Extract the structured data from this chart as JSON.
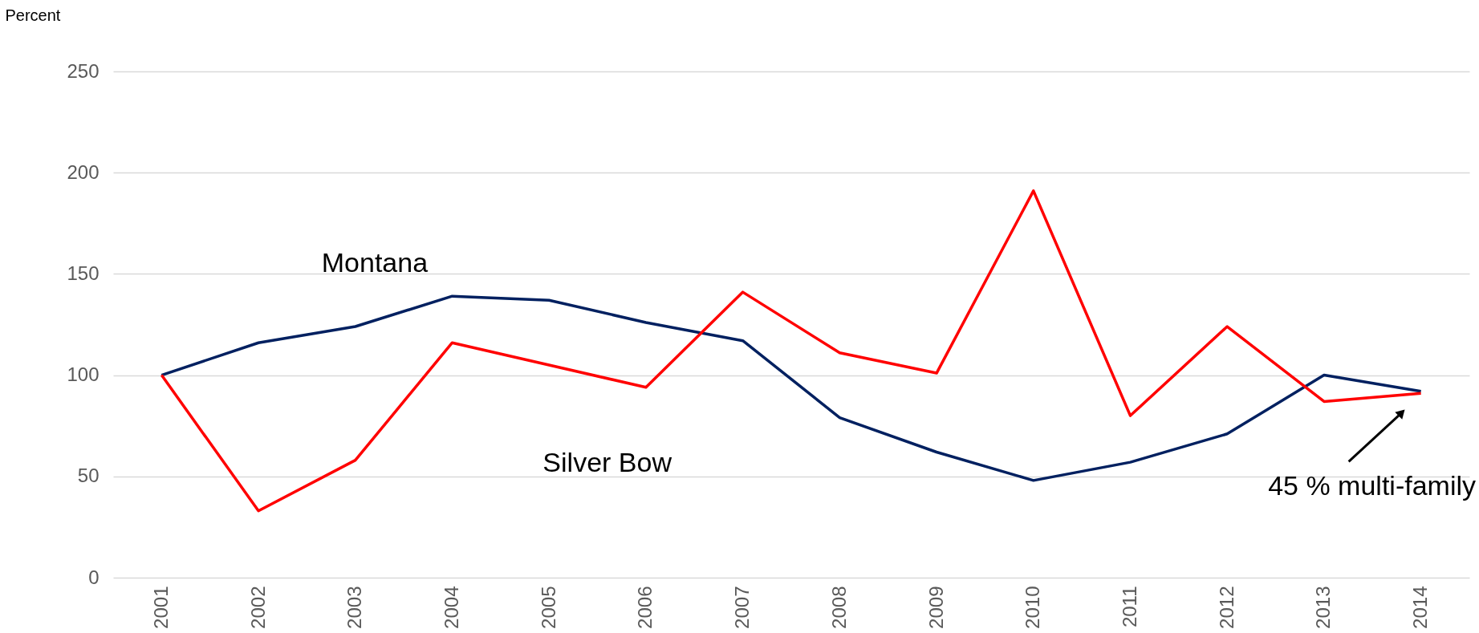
{
  "chart_data": {
    "type": "line",
    "ylabel": "Percent",
    "categories": [
      "2001",
      "2002",
      "2003",
      "2004",
      "2005",
      "2006",
      "2007",
      "2008",
      "2009",
      "2010",
      "2011",
      "2012",
      "2013",
      "2014"
    ],
    "series": [
      {
        "name": "Montana",
        "color": "#002060",
        "values": [
          100,
          116,
          124,
          139,
          137,
          126,
          117,
          79,
          62,
          48,
          57,
          71,
          100,
          92
        ]
      },
      {
        "name": "Silver Bow",
        "color": "#ff0000",
        "values": [
          100,
          33,
          58,
          116,
          105,
          94,
          141,
          111,
          101,
          191,
          80,
          124,
          87,
          91
        ]
      }
    ],
    "ylim": [
      0,
      250
    ],
    "yticks": [
      0,
      50,
      100,
      150,
      200,
      250
    ],
    "grid": "y",
    "legend": false,
    "annotations": [
      {
        "text": "45 % multi-family",
        "x": "2014",
        "y": 91
      }
    ]
  }
}
